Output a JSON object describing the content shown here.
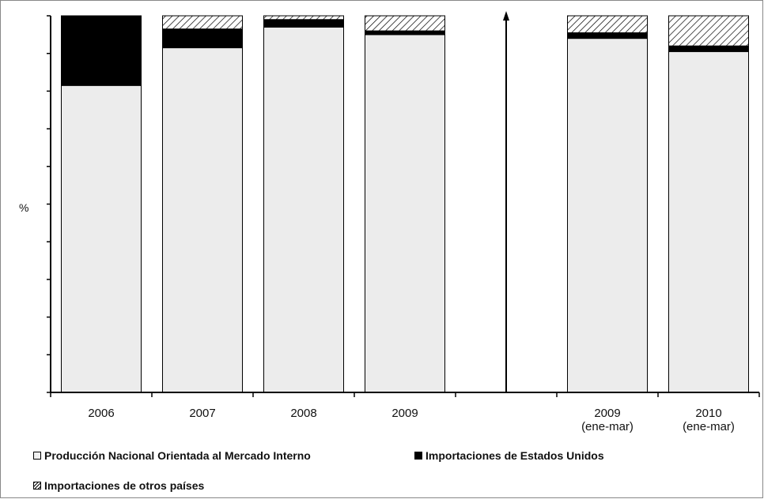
{
  "chart_data": {
    "type": "bar",
    "stacked": true,
    "ylabel": "%",
    "ylim": [
      0,
      100
    ],
    "categories": [
      "2006",
      "2007",
      "2008",
      "2009",
      "",
      "2009 (ene-mar)",
      "2010 (ene-mar)"
    ],
    "category_lines": [
      [
        "2006"
      ],
      [
        "2007"
      ],
      [
        "2008"
      ],
      [
        "2009"
      ],
      [],
      [
        "2009",
        "(ene-mar)"
      ],
      [
        "2010",
        "(ene-mar)"
      ]
    ],
    "series": [
      {
        "name": "Producción Nacional Orientada al Mercado Interno",
        "key": "nac",
        "values": [
          81.5,
          91.5,
          97.0,
          95.0,
          null,
          94.0,
          90.5
        ]
      },
      {
        "name": "Importaciones de Estados Unidos",
        "key": "usa",
        "values": [
          18.5,
          5.0,
          2.0,
          1.0,
          null,
          1.5,
          1.5
        ]
      },
      {
        "name": "Importaciones de otros países",
        "key": "otr",
        "values": [
          0,
          3.5,
          1.0,
          4.0,
          null,
          4.5,
          8.0
        ]
      }
    ],
    "separator_after_index": 4,
    "colors": {
      "nac": "#ececec",
      "usa": "#000000",
      "otr": "hatch",
      "frame": "#000000"
    },
    "grid": false,
    "legend_position": "bottom"
  },
  "legend": {
    "nac": "Producción Nacional Orientada al Mercado Interno",
    "usa": "Importaciones de Estados Unidos",
    "otr": "Importaciones de otros países"
  }
}
